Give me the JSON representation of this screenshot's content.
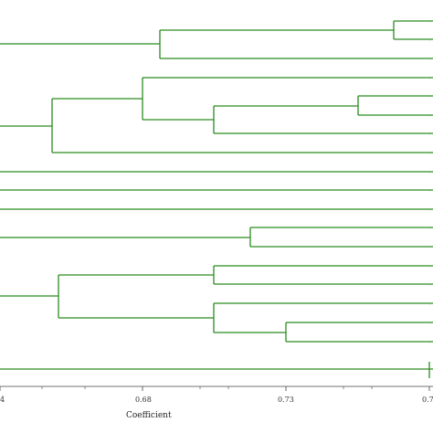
{
  "diagram": {
    "type": "dendrogram",
    "orientation": "horizontal",
    "axis": {
      "title": "Coefficient",
      "tick_labels": [
        "4",
        "0.68",
        "0.73",
        "0.7"
      ]
    },
    "line_color": "#2a8c1f"
  }
}
